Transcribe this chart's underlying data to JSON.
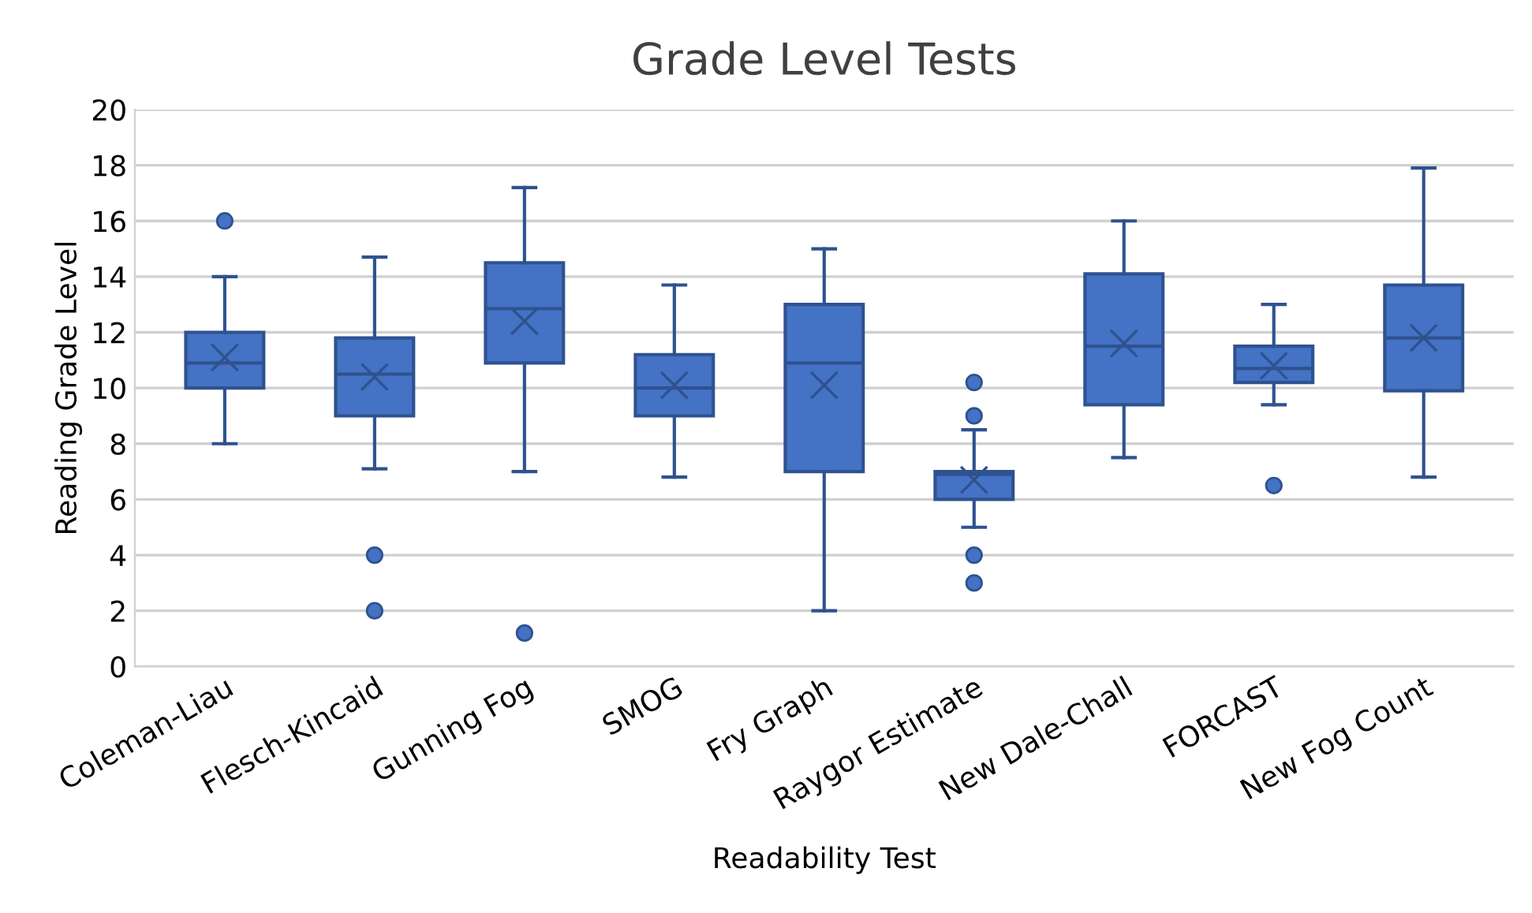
{
  "chart_data": {
    "type": "box",
    "title": "Grade Level Tests",
    "xlabel": "Readability Test",
    "ylabel": "Reading Grade Level",
    "categories": [
      "Coleman-Liau",
      "Flesch-Kincaid",
      "Gunning Fog",
      "SMOG",
      "Fry Graph",
      "Raygor Estimate",
      "New Dale-Chall",
      "FORCAST",
      "New Fog Count"
    ],
    "color": "#4472c4",
    "boxes": [
      {
        "low": 8,
        "q1": 10,
        "median": 10.9,
        "q3": 12,
        "high": 14,
        "mean": 11.1,
        "outliers": [
          16
        ]
      },
      {
        "low": 7.1,
        "q1": 9.0,
        "median": 10.5,
        "q3": 11.8,
        "high": 14.7,
        "mean": 10.4,
        "outliers": [
          4,
          2
        ]
      },
      {
        "low": 7.0,
        "q1": 10.9,
        "median": 12.85,
        "q3": 14.5,
        "high": 17.2,
        "mean": 12.4,
        "outliers": [
          1.2
        ]
      },
      {
        "low": 6.8,
        "q1": 9.0,
        "median": 10.0,
        "q3": 11.2,
        "high": 13.7,
        "mean": 10.1
      },
      {
        "low": 2,
        "q1": 7.0,
        "median": 10.9,
        "q3": 13.0,
        "high": 15.0,
        "mean": 10.1
      },
      {
        "low": 5,
        "q1": 6.0,
        "median": 6.9,
        "q3": 7.0,
        "high": 8.5,
        "mean": 6.7,
        "outliers": [
          10.2,
          9.0,
          4,
          3
        ]
      },
      {
        "low": 7.5,
        "q1": 9.4,
        "median": 11.5,
        "q3": 14.1,
        "high": 16.0,
        "mean": 11.6
      },
      {
        "low": 9.4,
        "q1": 10.2,
        "median": 10.7,
        "q3": 11.5,
        "high": 13.0,
        "mean": 10.8,
        "outliers": [
          6.5
        ]
      },
      {
        "low": 6.8,
        "q1": 9.9,
        "median": 11.8,
        "q3": 13.7,
        "high": 17.9,
        "mean": 11.8
      }
    ],
    "ylim": [
      0,
      20
    ],
    "yticks": [
      0,
      2,
      4,
      6,
      8,
      10,
      12,
      14,
      16,
      18,
      20
    ],
    "grid": "y",
    "legend": false
  }
}
